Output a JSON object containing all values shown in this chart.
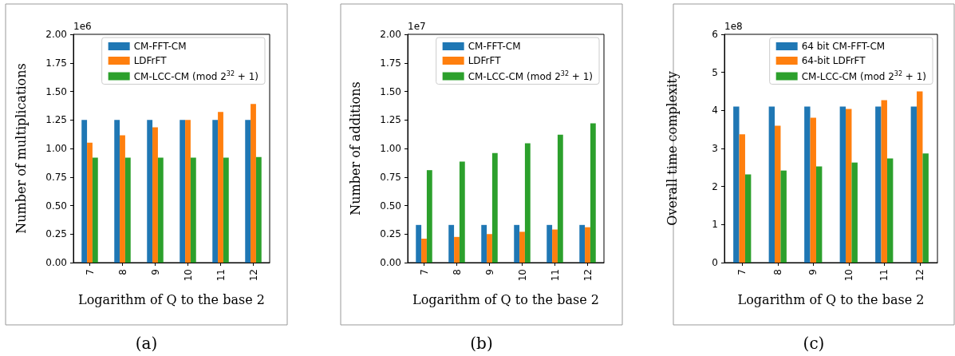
{
  "chart_data": [
    {
      "type": "bar",
      "xlabel": "Logarithm of Q to the base 2",
      "ylabel": "Number of multiplications",
      "categories": [
        "7",
        "8",
        "9",
        "10",
        "11",
        "12"
      ],
      "ylim": [
        0,
        2
      ],
      "yticks": [
        {
          "value": 0,
          "label": "0.00"
        },
        0.25,
        {
          "value": 0.5,
          "label": "0.50"
        },
        0.75,
        {
          "value": 1,
          "label": "1.00"
        },
        1.25,
        {
          "value": 1.5,
          "label": "1.50"
        },
        1.75,
        {
          "value": 2,
          "label": "2.00"
        }
      ],
      "legend": "top right",
      "annotations": [
        "1e6",
        "(a)"
      ],
      "series": [
        {
          "name": "CM-FFT-CM",
          "color": "#1f77b4",
          "values": [
            1.25,
            1.25,
            1.25,
            1.25,
            1.25,
            1.25
          ]
        },
        {
          "name": "LDFrFT",
          "color": "#ff7f0e",
          "values": [
            1.05,
            1.115,
            1.185,
            1.25,
            1.32,
            1.39
          ]
        },
        {
          "name": "CM-LCC-CM (mod 2$^{32}$ + 1)",
          "color": "#2ca02c",
          "values": [
            0.92,
            0.92,
            0.92,
            0.92,
            0.92,
            0.925
          ]
        }
      ]
    },
    {
      "type": "bar",
      "xlabel": "Logarithm of Q to the base 2",
      "ylabel": "Number of additions",
      "categories": [
        "7",
        "8",
        "9",
        "10",
        "11",
        "12"
      ],
      "ylim": [
        0,
        2
      ],
      "yticks": [
        {
          "value": 0,
          "label": "0.00"
        },
        0.25,
        {
          "value": 0.5,
          "label": "0.50"
        },
        0.75,
        {
          "value": 1,
          "label": "1.00"
        },
        1.25,
        {
          "value": 1.5,
          "label": "1.50"
        },
        1.75,
        {
          "value": 2,
          "label": "2.00"
        }
      ],
      "legend": "top right",
      "annotations": [
        "1e7",
        "(b)"
      ],
      "series": [
        {
          "name": "CM-FFT-CM",
          "color": "#1f77b4",
          "values": [
            0.33,
            0.33,
            0.33,
            0.33,
            0.33,
            0.33
          ]
        },
        {
          "name": "LDFrFT",
          "color": "#ff7f0e",
          "values": [
            0.21,
            0.225,
            0.25,
            0.27,
            0.29,
            0.31
          ]
        },
        {
          "name": "CM-LCC-CM (mod 2$^{32}$ + 1)",
          "color": "#2ca02c",
          "values": [
            0.81,
            0.885,
            0.96,
            1.045,
            1.12,
            1.22
          ]
        }
      ]
    },
    {
      "type": "bar",
      "xlabel": "Logarithm of Q to the base 2",
      "ylabel": "Overall time complexity",
      "categories": [
        "7",
        "8",
        "9",
        "10",
        "11",
        "12"
      ],
      "ylim": [
        0,
        6
      ],
      "yticks": [
        0,
        1,
        2,
        3,
        4,
        5,
        6
      ],
      "legend": "top right",
      "annotations": [
        "1e8",
        "(c)"
      ],
      "series": [
        {
          "name": "64 bit CM-FFT-CM",
          "color": "#1f77b4",
          "values": [
            4.1,
            4.1,
            4.1,
            4.1,
            4.1,
            4.1
          ]
        },
        {
          "name": "64-bit LDFrFT",
          "color": "#ff7f0e",
          "values": [
            3.37,
            3.6,
            3.81,
            4.04,
            4.27,
            4.5
          ]
        },
        {
          "name": "CM-LCC-CM (mod 2$^{32}$ + 1)",
          "color": "#2ca02c",
          "values": [
            2.32,
            2.42,
            2.53,
            2.63,
            2.74,
            2.87
          ]
        }
      ]
    }
  ]
}
